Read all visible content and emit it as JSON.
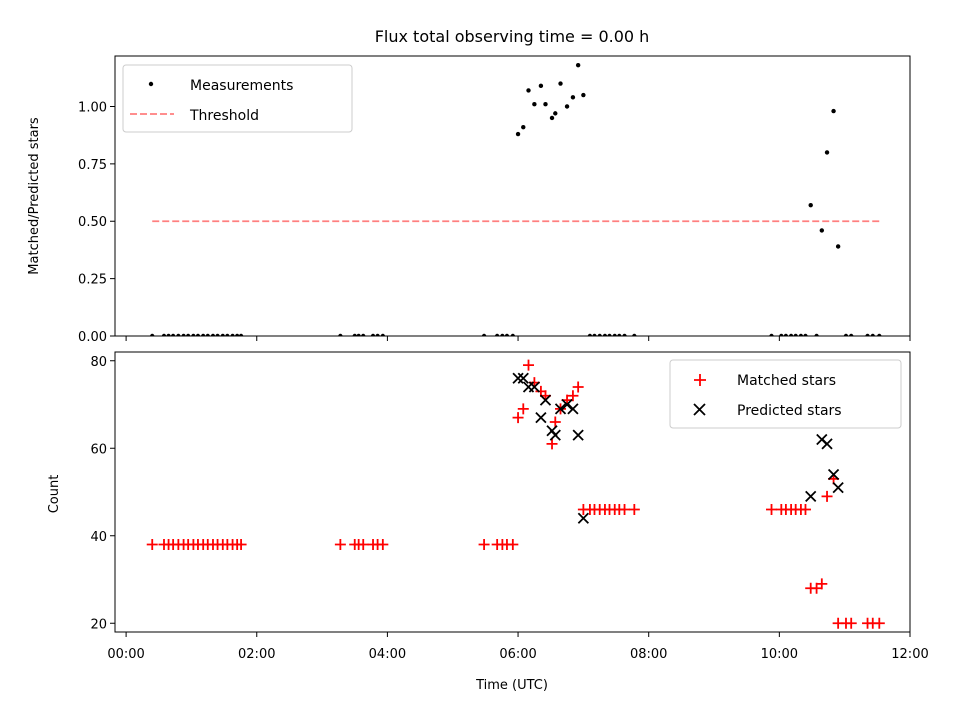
{
  "chart_data": [
    {
      "type": "scatter",
      "title": "Flux total observing time = 0.00 h",
      "xlabel": "",
      "ylabel": "Matched/Predicted stars",
      "x_unit": "hours UTC",
      "xlim": [
        -0.17,
        12.0
      ],
      "ylim": [
        0.0,
        1.22
      ],
      "yticks": [
        0.0,
        0.25,
        0.5,
        0.75,
        1.0
      ],
      "ytick_labels": [
        "0.00",
        "0.25",
        "0.50",
        "0.75",
        "1.00"
      ],
      "legend_position": "upper left",
      "series": [
        {
          "name": "Measurements",
          "marker": "dot",
          "color": "#000000",
          "points": [
            [
              0.4,
              0
            ],
            [
              0.58,
              0
            ],
            [
              0.65,
              0
            ],
            [
              0.72,
              0
            ],
            [
              0.8,
              0
            ],
            [
              0.88,
              0
            ],
            [
              0.95,
              0
            ],
            [
              1.03,
              0
            ],
            [
              1.1,
              0
            ],
            [
              1.18,
              0
            ],
            [
              1.25,
              0
            ],
            [
              1.33,
              0
            ],
            [
              1.4,
              0
            ],
            [
              1.48,
              0
            ],
            [
              1.55,
              0
            ],
            [
              1.63,
              0
            ],
            [
              1.7,
              0
            ],
            [
              1.76,
              0
            ],
            [
              3.28,
              0
            ],
            [
              3.5,
              0
            ],
            [
              3.56,
              0
            ],
            [
              3.63,
              0
            ],
            [
              3.78,
              0
            ],
            [
              3.85,
              0
            ],
            [
              3.93,
              0
            ],
            [
              5.48,
              0
            ],
            [
              5.68,
              0
            ],
            [
              5.76,
              0
            ],
            [
              5.83,
              0
            ],
            [
              5.92,
              0
            ],
            [
              6.0,
              0.88
            ],
            [
              6.08,
              0.91
            ],
            [
              6.16,
              1.07
            ],
            [
              6.25,
              1.01
            ],
            [
              6.35,
              1.09
            ],
            [
              6.42,
              1.01
            ],
            [
              6.52,
              0.95
            ],
            [
              6.57,
              0.97
            ],
            [
              6.65,
              1.1
            ],
            [
              6.75,
              1.0
            ],
            [
              6.84,
              1.04
            ],
            [
              6.92,
              1.18
            ],
            [
              7.0,
              1.05
            ],
            [
              7.1,
              0
            ],
            [
              7.17,
              0
            ],
            [
              7.25,
              0
            ],
            [
              7.33,
              0
            ],
            [
              7.4,
              0
            ],
            [
              7.48,
              0
            ],
            [
              7.55,
              0
            ],
            [
              7.63,
              0
            ],
            [
              7.78,
              0
            ],
            [
              9.88,
              0
            ],
            [
              10.03,
              0
            ],
            [
              10.1,
              0
            ],
            [
              10.18,
              0
            ],
            [
              10.25,
              0
            ],
            [
              10.33,
              0
            ],
            [
              10.4,
              0
            ],
            [
              10.57,
              0
            ],
            [
              10.48,
              0.57
            ],
            [
              10.65,
              0.46
            ],
            [
              10.73,
              0.8
            ],
            [
              10.83,
              0.98
            ],
            [
              10.9,
              0.39
            ],
            [
              11.02,
              0
            ],
            [
              11.1,
              0
            ],
            [
              11.35,
              0
            ],
            [
              11.43,
              0
            ],
            [
              11.53,
              0
            ]
          ]
        },
        {
          "name": "Threshold",
          "line": "dashed",
          "color": "#ff7f7f",
          "points": [
            [
              0.4,
              0.5
            ],
            [
              11.53,
              0.5
            ]
          ]
        }
      ]
    },
    {
      "type": "scatter",
      "title": "",
      "xlabel": "Time (UTC)",
      "ylabel": "Count",
      "x_unit": "hours UTC",
      "xlim": [
        -0.17,
        12.0
      ],
      "ylim": [
        18,
        82
      ],
      "xticks": [
        0,
        2,
        4,
        6,
        8,
        10,
        12
      ],
      "xtick_labels": [
        "00:00",
        "02:00",
        "04:00",
        "06:00",
        "08:00",
        "10:00",
        "12:00"
      ],
      "yticks": [
        20,
        40,
        60,
        80
      ],
      "ytick_labels": [
        "20",
        "40",
        "60",
        "80"
      ],
      "legend_position": "upper right",
      "series": [
        {
          "name": "Matched stars",
          "marker": "plus",
          "color": "#ff0000",
          "points": [
            [
              0.4,
              38
            ],
            [
              0.58,
              38
            ],
            [
              0.65,
              38
            ],
            [
              0.72,
              38
            ],
            [
              0.8,
              38
            ],
            [
              0.88,
              38
            ],
            [
              0.95,
              38
            ],
            [
              1.03,
              38
            ],
            [
              1.1,
              38
            ],
            [
              1.18,
              38
            ],
            [
              1.25,
              38
            ],
            [
              1.33,
              38
            ],
            [
              1.4,
              38
            ],
            [
              1.48,
              38
            ],
            [
              1.55,
              38
            ],
            [
              1.63,
              38
            ],
            [
              1.7,
              38
            ],
            [
              1.76,
              38
            ],
            [
              3.28,
              38
            ],
            [
              3.5,
              38
            ],
            [
              3.56,
              38
            ],
            [
              3.63,
              38
            ],
            [
              3.78,
              38
            ],
            [
              3.85,
              38
            ],
            [
              3.93,
              38
            ],
            [
              5.48,
              38
            ],
            [
              5.68,
              38
            ],
            [
              5.76,
              38
            ],
            [
              5.83,
              38
            ],
            [
              5.92,
              38
            ],
            [
              6.0,
              67
            ],
            [
              6.08,
              69
            ],
            [
              6.16,
              79
            ],
            [
              6.25,
              75
            ],
            [
              6.35,
              73
            ],
            [
              6.42,
              72
            ],
            [
              6.52,
              61
            ],
            [
              6.57,
              66
            ],
            [
              6.65,
              69
            ],
            [
              6.75,
              71
            ],
            [
              6.84,
              72
            ],
            [
              6.92,
              74
            ],
            [
              7.0,
              46
            ],
            [
              7.1,
              46
            ],
            [
              7.17,
              46
            ],
            [
              7.25,
              46
            ],
            [
              7.33,
              46
            ],
            [
              7.4,
              46
            ],
            [
              7.48,
              46
            ],
            [
              7.55,
              46
            ],
            [
              7.63,
              46
            ],
            [
              7.78,
              46
            ],
            [
              9.88,
              46
            ],
            [
              10.03,
              46
            ],
            [
              10.1,
              46
            ],
            [
              10.18,
              46
            ],
            [
              10.25,
              46
            ],
            [
              10.33,
              46
            ],
            [
              10.4,
              46
            ],
            [
              10.48,
              28
            ],
            [
              10.57,
              28
            ],
            [
              10.65,
              29
            ],
            [
              10.73,
              49
            ],
            [
              10.83,
              53
            ],
            [
              10.9,
              20
            ],
            [
              11.02,
              20
            ],
            [
              11.1,
              20
            ],
            [
              11.35,
              20
            ],
            [
              11.43,
              20
            ],
            [
              11.53,
              20
            ]
          ]
        },
        {
          "name": "Predicted stars",
          "marker": "cross",
          "color": "#000000",
          "points": [
            [
              6.0,
              76
            ],
            [
              6.08,
              76
            ],
            [
              6.16,
              74
            ],
            [
              6.25,
              74
            ],
            [
              6.35,
              67
            ],
            [
              6.42,
              71
            ],
            [
              6.52,
              64
            ],
            [
              6.57,
              63
            ],
            [
              6.65,
              69
            ],
            [
              6.75,
              70
            ],
            [
              6.84,
              69
            ],
            [
              6.92,
              63
            ],
            [
              7.0,
              44
            ],
            [
              10.48,
              49
            ],
            [
              10.65,
              62
            ],
            [
              10.73,
              61
            ],
            [
              10.83,
              54
            ],
            [
              10.9,
              51
            ]
          ]
        }
      ]
    }
  ]
}
